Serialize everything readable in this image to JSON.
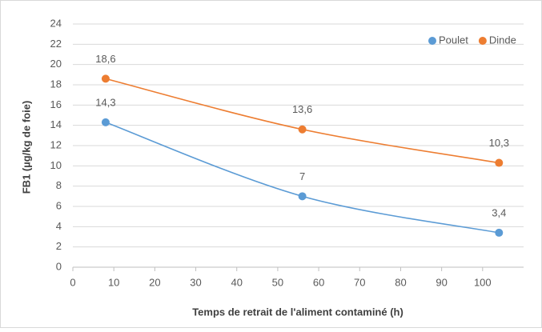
{
  "chart_data": {
    "type": "line",
    "xlabel": "Temps de retrait de l'aliment contaminé (h)",
    "ylabel": "FB1 (µg/kg  de foie)",
    "x": [
      8,
      56,
      104
    ],
    "series": [
      {
        "name": "Poulet",
        "color": "#5b9bd5",
        "values": [
          14.3,
          7,
          3.4
        ],
        "value_labels": [
          "14,3",
          "7",
          "3,4"
        ]
      },
      {
        "name": "Dinde",
        "color": "#ed7d31",
        "values": [
          18.6,
          13.6,
          10.3
        ],
        "value_labels": [
          "18,6",
          "13,6",
          "10,3"
        ]
      }
    ],
    "xlim": [
      0,
      110
    ],
    "xticks": [
      0,
      10,
      20,
      30,
      40,
      50,
      60,
      70,
      80,
      90,
      100
    ],
    "ylim": [
      0,
      24
    ],
    "yticks": [
      0,
      2,
      4,
      6,
      8,
      10,
      12,
      14,
      16,
      18,
      20,
      22,
      24
    ],
    "grid": true,
    "smooth": true,
    "legend": "top-right"
  }
}
